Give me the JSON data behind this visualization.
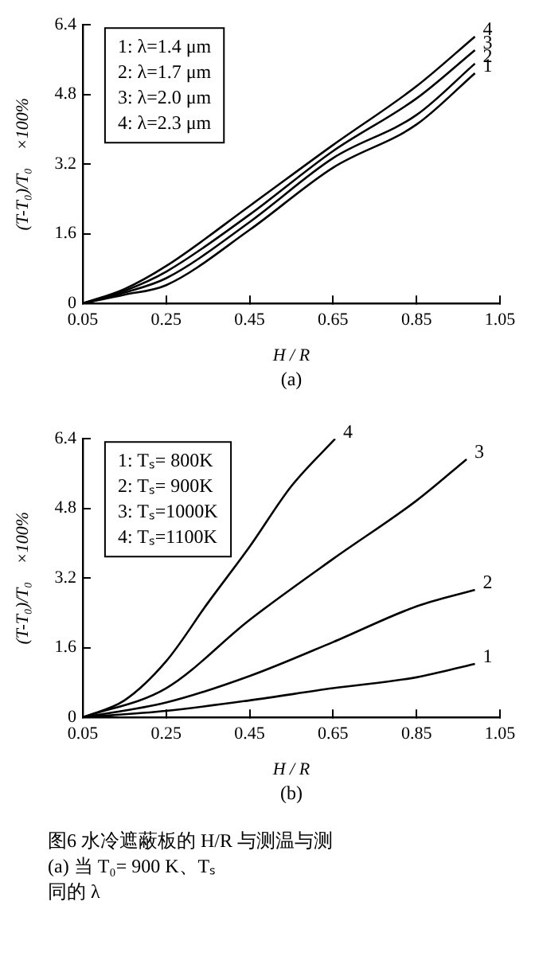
{
  "chart_data": [
    {
      "type": "line",
      "title": "(a)",
      "xlabel": "H / R",
      "ylabel": "(T-T₀)/T₀    ×100%",
      "xlim": [
        0.05,
        1.05
      ],
      "xticks": [
        0.05,
        0.25,
        0.45,
        0.65,
        0.85,
        1.05
      ],
      "ylim": [
        0,
        6.4
      ],
      "yticks": [
        0,
        1.6,
        3.2,
        4.8,
        6.4
      ],
      "grid": false,
      "marker": "none",
      "line_style": "solid",
      "annotations": [
        "1: λ=1.4 μm",
        "2: λ=1.7 μm",
        "3: λ=2.0 μm",
        "4: λ=2.3 μm"
      ],
      "series": [
        {
          "name": "1",
          "color": "#000000",
          "x": [
            0.05,
            0.15,
            0.25,
            0.45,
            0.65,
            0.85,
            0.99
          ],
          "values": [
            0,
            0.2,
            0.42,
            1.69,
            3.12,
            4.11,
            5.29
          ]
        },
        {
          "name": "2",
          "color": "#000000",
          "x": [
            0.05,
            0.15,
            0.25,
            0.45,
            0.65,
            0.85,
            0.99
          ],
          "values": [
            0,
            0.25,
            0.58,
            1.87,
            3.34,
            4.33,
            5.51
          ]
        },
        {
          "name": "3",
          "color": "#000000",
          "x": [
            0.05,
            0.15,
            0.25,
            0.45,
            0.65,
            0.85,
            0.99
          ],
          "values": [
            0,
            0.29,
            0.73,
            2.04,
            3.5,
            4.71,
            5.82
          ]
        },
        {
          "name": "4",
          "color": "#000000",
          "x": [
            0.05,
            0.15,
            0.25,
            0.45,
            0.65,
            0.85,
            0.99
          ],
          "values": [
            0,
            0.33,
            0.86,
            2.24,
            3.64,
            4.99,
            6.13
          ]
        }
      ]
    },
    {
      "type": "line",
      "title": "(b)",
      "xlabel": "H / R",
      "ylabel": "(T-T₀)/T₀    ×100%",
      "xlim": [
        0.05,
        1.05
      ],
      "xticks": [
        0.05,
        0.25,
        0.45,
        0.65,
        0.85,
        1.05
      ],
      "ylim": [
        0,
        6.4
      ],
      "yticks": [
        0,
        1.6,
        3.2,
        4.8,
        6.4
      ],
      "grid": false,
      "marker": "none",
      "line_style": "solid",
      "annotations": [
        "1: Tₛ= 800K",
        "2: Tₛ= 900K",
        "3: Tₛ=1000K",
        "4: Tₛ=1100K",
        "图6  水冷遮蔽板的 H/R 与测温与测",
        "(a) 当 T₀= 900 K、Tₛ",
        "同的 λ"
      ],
      "series": [
        {
          "name": "1",
          "color": "#000000",
          "x": [
            0.05,
            0.25,
            0.45,
            0.65,
            0.85,
            0.99
          ],
          "values": [
            0,
            0.15,
            0.39,
            0.67,
            0.92,
            1.23
          ]
        },
        {
          "name": "2",
          "color": "#000000",
          "x": [
            0.05,
            0.25,
            0.45,
            0.65,
            0.85,
            0.99
          ],
          "values": [
            0,
            0.34,
            0.95,
            1.73,
            2.55,
            2.93
          ]
        },
        {
          "name": "3",
          "color": "#000000",
          "x": [
            0.05,
            0.25,
            0.45,
            0.65,
            0.85,
            0.97
          ],
          "values": [
            0,
            0.67,
            2.24,
            3.64,
            4.98,
            5.93
          ]
        },
        {
          "name": "4",
          "color": "#000000",
          "x": [
            0.05,
            0.15,
            0.25,
            0.35,
            0.45,
            0.55,
            0.655
          ],
          "values": [
            0,
            0.39,
            1.29,
            2.63,
            3.92,
            5.31,
            6.4
          ]
        }
      ]
    }
  ]
}
